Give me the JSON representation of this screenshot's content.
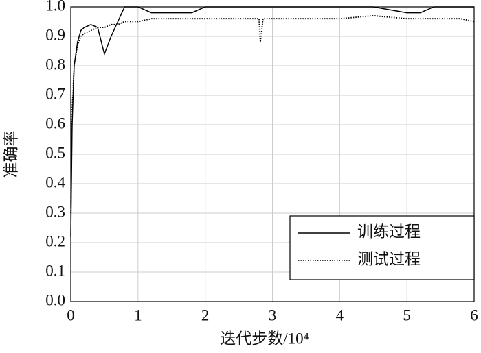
{
  "chart_data": {
    "type": "line",
    "xlabel": "迭代步数/10⁴",
    "ylabel": "准确率",
    "x": [
      0,
      0.02,
      0.05,
      0.1,
      0.15,
      0.2,
      0.3,
      0.4,
      0.5,
      0.6,
      0.7,
      0.8,
      0.9,
      1.0,
      1.2,
      1.4,
      1.6,
      1.8,
      2.0,
      2.4,
      2.8,
      2.82,
      2.86,
      3.2,
      3.6,
      4.0,
      4.5,
      5.0,
      5.2,
      5.4,
      5.8,
      6.0
    ],
    "series": [
      {
        "name": "训练过程",
        "color": "#000000",
        "style": "solid",
        "values": [
          0.22,
          0.6,
          0.8,
          0.88,
          0.92,
          0.93,
          0.94,
          0.93,
          0.84,
          0.9,
          0.95,
          1.0,
          1.0,
          1.0,
          0.98,
          0.98,
          0.98,
          0.98,
          1.0,
          1.0,
          1.0,
          1.0,
          1.0,
          1.0,
          1.0,
          1.0,
          1.0,
          0.98,
          0.98,
          1.0,
          1.0,
          1.0
        ]
      },
      {
        "name": "测试过程",
        "color": "#000000",
        "style": "dotted",
        "values": [
          0.3,
          0.65,
          0.8,
          0.87,
          0.9,
          0.91,
          0.92,
          0.93,
          0.93,
          0.94,
          0.94,
          0.95,
          0.95,
          0.95,
          0.96,
          0.96,
          0.96,
          0.96,
          0.96,
          0.96,
          0.96,
          0.88,
          0.96,
          0.96,
          0.96,
          0.96,
          0.97,
          0.96,
          0.96,
          0.96,
          0.96,
          0.95
        ]
      }
    ],
    "xlim": [
      0,
      6
    ],
    "xticks": [
      0,
      1,
      2,
      3,
      4,
      5,
      6
    ],
    "ylim": [
      0,
      1
    ],
    "yticks": [
      {
        "value": 0,
        "label": "0.0"
      },
      0.1,
      0.2,
      0.3,
      0.4,
      0.5,
      0.6,
      0.7,
      0.8,
      0.9,
      {
        "value": 1,
        "label": "1.0"
      }
    ],
    "grid": true,
    "legend": "lower right"
  }
}
